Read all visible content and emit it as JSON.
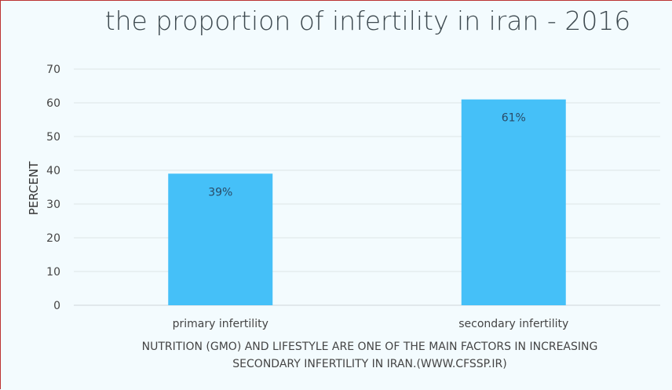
{
  "chart_data": {
    "type": "bar",
    "title": "the proportion of infertility in iran - 2016",
    "xlabel": "",
    "ylabel": "PERCENT",
    "categories": [
      "primary infertility",
      "secondary infertility"
    ],
    "values": [
      39,
      61
    ],
    "data_labels": [
      "39%",
      "61%"
    ],
    "ylim": [
      0,
      70
    ],
    "yticks": [
      0,
      10,
      20,
      30,
      40,
      50,
      60,
      70
    ],
    "grid": true,
    "bar_color": "#45c0f8",
    "caption": [
      "NUTRITION (GMO) AND LIFESTYLE ARE ONE OF THE MAIN FACTORS IN INCREASING",
      "SECONDARY INFERTILITY IN IRAN.(WWW.CFSSP.IR)"
    ]
  }
}
